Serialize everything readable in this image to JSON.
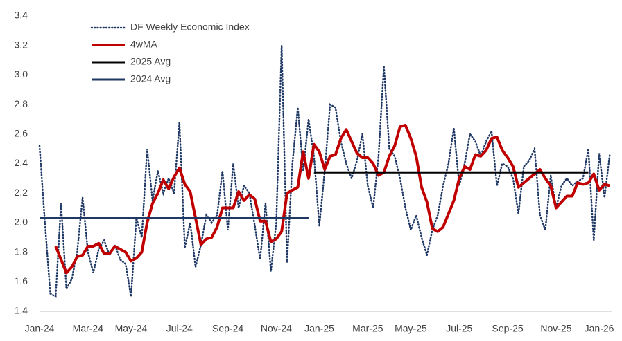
{
  "chart_data": {
    "type": "line",
    "categories": [
      "Jan-24",
      null,
      null,
      null,
      null,
      null,
      null,
      null,
      null,
      "Mar-24",
      null,
      null,
      null,
      null,
      null,
      null,
      null,
      "May-24",
      null,
      null,
      null,
      null,
      null,
      null,
      null,
      null,
      "Jul-24",
      null,
      null,
      null,
      null,
      null,
      null,
      null,
      null,
      "Sep-24",
      null,
      null,
      null,
      null,
      null,
      null,
      null,
      null,
      "Nov-24",
      null,
      null,
      null,
      null,
      null,
      null,
      null,
      "Jan-25",
      null,
      null,
      null,
      null,
      null,
      null,
      null,
      null,
      "Mar-25",
      null,
      null,
      null,
      null,
      null,
      null,
      null,
      "May-25",
      null,
      null,
      null,
      null,
      null,
      null,
      null,
      null,
      "Jul-25",
      null,
      null,
      null,
      null,
      null,
      null,
      null,
      null,
      "Sep-25",
      null,
      null,
      null,
      null,
      null,
      null,
      null,
      null,
      "Nov-25",
      null,
      null,
      null,
      null,
      null,
      null,
      null,
      "Jan-26",
      null,
      null
    ],
    "series": [
      {
        "name": "DF Weekly Economic Index",
        "color": "#1f3864",
        "style": "dotted",
        "values": [
          2.52,
          2,
          1.52,
          1.5,
          2.13,
          1.55,
          1.62,
          1.8,
          2.17,
          1.8,
          1.66,
          1.82,
          1.88,
          1.78,
          1.85,
          1.75,
          1.72,
          1.5,
          2.03,
          1.9,
          2.5,
          2.15,
          2.35,
          2.2,
          2.3,
          2.2,
          2.68,
          1.83,
          2,
          1.7,
          1.85,
          2.05,
          2,
          2.05,
          2.35,
          1.95,
          2.4,
          2.1,
          2.25,
          2.2,
          1.98,
          1.75,
          2.13,
          1.67,
          2,
          3.2,
          1.73,
          2.4,
          2.78,
          2.35,
          2.7,
          2.45,
          1.98,
          2.35,
          2.8,
          2.78,
          2.55,
          2.4,
          2.3,
          2.42,
          2.6,
          2.25,
          2.1,
          2.45,
          3.06,
          2.5,
          2.45,
          2.3,
          2.1,
          1.95,
          2.05,
          1.9,
          1.78,
          1.95,
          2.05,
          2.25,
          2.4,
          2.64,
          2.25,
          2.4,
          2.6,
          2.55,
          2.45,
          2.55,
          2.62,
          2.25,
          2.4,
          2.38,
          2.3,
          2.06,
          2.38,
          2.42,
          2.5,
          2.05,
          1.95,
          2.32,
          2.1,
          2.25,
          2.3,
          2.25,
          2.28,
          2.3,
          2.5,
          1.88,
          2.47,
          2.17,
          2.47
        ]
      },
      {
        "name": "4wMA",
        "color": "#c00000",
        "style": "thick",
        "values": [
          null,
          null,
          null,
          1.84,
          1.75,
          1.66,
          1.7,
          1.77,
          1.78,
          1.84,
          1.84,
          1.86,
          1.79,
          1.79,
          1.84,
          1.82,
          1.8,
          1.74,
          1.76,
          1.8,
          2,
          2.13,
          2.2,
          2.29,
          2.23,
          2.31,
          2.37,
          2.26,
          2.21,
          2.03,
          1.85,
          1.89,
          1.9,
          1.97,
          2.1,
          2.1,
          2.1,
          2.21,
          2.15,
          2.19,
          2.16,
          2.01,
          2.01,
          1.87,
          1.89,
          1.94,
          2.2,
          2.22,
          2.24,
          2.48,
          2.3,
          2.53,
          2.48,
          2.36,
          2.45,
          2.46,
          2.57,
          2.63,
          2.55,
          2.47,
          2.44,
          2.44,
          2.4,
          2.32,
          2.34,
          2.45,
          2.52,
          2.65,
          2.66,
          2.57,
          2.45,
          2.24,
          2.14,
          1.96,
          1.94,
          1.97,
          2.06,
          2.15,
          2.3,
          2.38,
          2.36,
          2.46,
          2.45,
          2.49,
          2.57,
          2.58,
          2.49,
          2.44,
          2.38,
          2.24,
          2.27,
          2.3,
          2.33,
          2.36,
          2.3,
          2.25,
          2.1,
          2.14,
          2.18,
          2.18,
          2.27,
          2.26,
          2.27,
          2.33,
          2.22,
          2.26,
          2.25
        ]
      },
      {
        "name": "2025 Avg",
        "color": "#000000",
        "style": "solid",
        "values": [
          null,
          null,
          null,
          null,
          null,
          null,
          null,
          null,
          null,
          null,
          null,
          null,
          null,
          null,
          null,
          null,
          null,
          null,
          null,
          null,
          null,
          null,
          null,
          null,
          null,
          null,
          null,
          null,
          null,
          null,
          null,
          null,
          null,
          null,
          null,
          null,
          null,
          null,
          null,
          null,
          null,
          null,
          null,
          null,
          null,
          null,
          null,
          null,
          null,
          null,
          null,
          2.34,
          2.34,
          2.34,
          2.34,
          2.34,
          2.34,
          2.34,
          2.34,
          2.34,
          2.34,
          2.34,
          2.34,
          2.34,
          2.34,
          2.34,
          2.34,
          2.34,
          2.34,
          2.34,
          2.34,
          2.34,
          2.34,
          2.34,
          2.34,
          2.34,
          2.34,
          2.34,
          2.34,
          2.34,
          2.34,
          2.34,
          2.34,
          2.34,
          2.34,
          2.34,
          2.34,
          2.34,
          2.34,
          2.34,
          2.34,
          2.34,
          2.34,
          2.34,
          2.34,
          2.34,
          2.34,
          2.34,
          2.34,
          2.34,
          2.34,
          2.34,
          2.34,
          null,
          null,
          null,
          null
        ]
      },
      {
        "name": "2024 Avg",
        "color": "#1f3864",
        "style": "solid",
        "values": [
          2.03,
          2.03,
          2.03,
          2.03,
          2.03,
          2.03,
          2.03,
          2.03,
          2.03,
          2.03,
          2.03,
          2.03,
          2.03,
          2.03,
          2.03,
          2.03,
          2.03,
          2.03,
          2.03,
          2.03,
          2.03,
          2.03,
          2.03,
          2.03,
          2.03,
          2.03,
          2.03,
          2.03,
          2.03,
          2.03,
          2.03,
          2.03,
          2.03,
          2.03,
          2.03,
          2.03,
          2.03,
          2.03,
          2.03,
          2.03,
          2.03,
          2.03,
          2.03,
          2.03,
          2.03,
          2.03,
          2.03,
          2.03,
          2.03,
          2.03,
          2.03,
          null,
          null,
          null,
          null,
          null,
          null,
          null,
          null,
          null,
          null,
          null,
          null,
          null,
          null,
          null,
          null,
          null,
          null,
          null,
          null,
          null,
          null,
          null,
          null,
          null,
          null,
          null,
          null,
          null,
          null,
          null,
          null,
          null,
          null,
          null,
          null,
          null,
          null,
          null,
          null,
          null,
          null,
          null,
          null,
          null,
          null,
          null,
          null,
          null,
          null,
          null,
          null,
          null,
          null,
          null,
          null
        ]
      }
    ],
    "ylim": [
      1.4,
      3.4
    ],
    "yticks": [
      1.4,
      1.6,
      1.8,
      {
        "value": 2,
        "label": "2.0"
      },
      2.2,
      2.4,
      2.6,
      2.8,
      {
        "value": 3,
        "label": "3.0"
      },
      3.2,
      3.4
    ],
    "grid": false,
    "legend": "top-left"
  }
}
